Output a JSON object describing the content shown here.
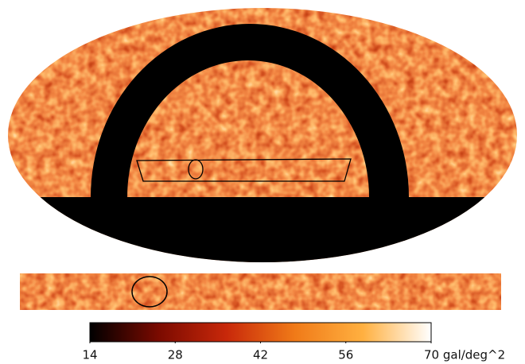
{
  "chart_data": {
    "type": "map",
    "colormap": [
      "#000000",
      "#7a0a00",
      "#c8280a",
      "#f07a18",
      "#ffb040",
      "#ffffff"
    ],
    "clim": [
      14,
      70
    ],
    "cticks": [
      14,
      28,
      42,
      56,
      {
        "value": 70,
        "label": "70 gal/deg^2"
      }
    ]
  }
}
